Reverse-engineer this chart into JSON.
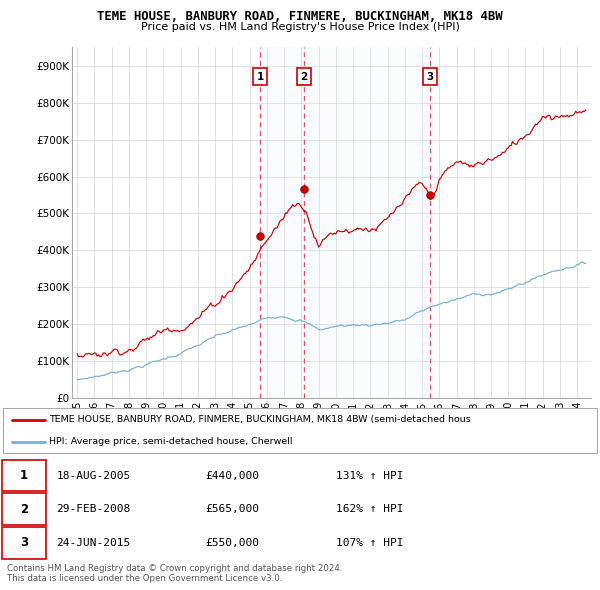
{
  "title": "TEME HOUSE, BANBURY ROAD, FINMERE, BUCKINGHAM, MK18 4BW",
  "subtitle": "Price paid vs. HM Land Registry's House Price Index (HPI)",
  "ylabel_ticks": [
    "£0",
    "£100K",
    "£200K",
    "£300K",
    "£400K",
    "£500K",
    "£600K",
    "£700K",
    "£800K",
    "£900K"
  ],
  "ytick_values": [
    0,
    100000,
    200000,
    300000,
    400000,
    500000,
    600000,
    700000,
    800000,
    900000
  ],
  "ylim": [
    0,
    950000
  ],
  "xlim_start": 1994.7,
  "xlim_end": 2024.8,
  "sale_dates": [
    2005.625,
    2008.163,
    2015.479
  ],
  "sale_prices": [
    440000,
    565000,
    550000
  ],
  "sale_labels": [
    "1",
    "2",
    "3"
  ],
  "legend_red": "TEME HOUSE, BANBURY ROAD, FINMERE, BUCKINGHAM, MK18 4BW (semi-detached hous",
  "legend_blue": "HPI: Average price, semi-detached house, Cherwell",
  "table_data": [
    [
      "1",
      "18-AUG-2005",
      "£440,000",
      "131% ↑ HPI"
    ],
    [
      "2",
      "29-FEB-2008",
      "£565,000",
      "162% ↑ HPI"
    ],
    [
      "3",
      "24-JUN-2015",
      "£550,000",
      "107% ↑ HPI"
    ]
  ],
  "footer": "Contains HM Land Registry data © Crown copyright and database right 2024.\nThis data is licensed under the Open Government Licence v3.0.",
  "red_color": "#cc0000",
  "blue_color": "#7ab0d4",
  "dashed_color": "#dd4444",
  "shade_color": "#ddeeff",
  "grid_color": "#cccccc",
  "label_box_color": "#cc0000"
}
